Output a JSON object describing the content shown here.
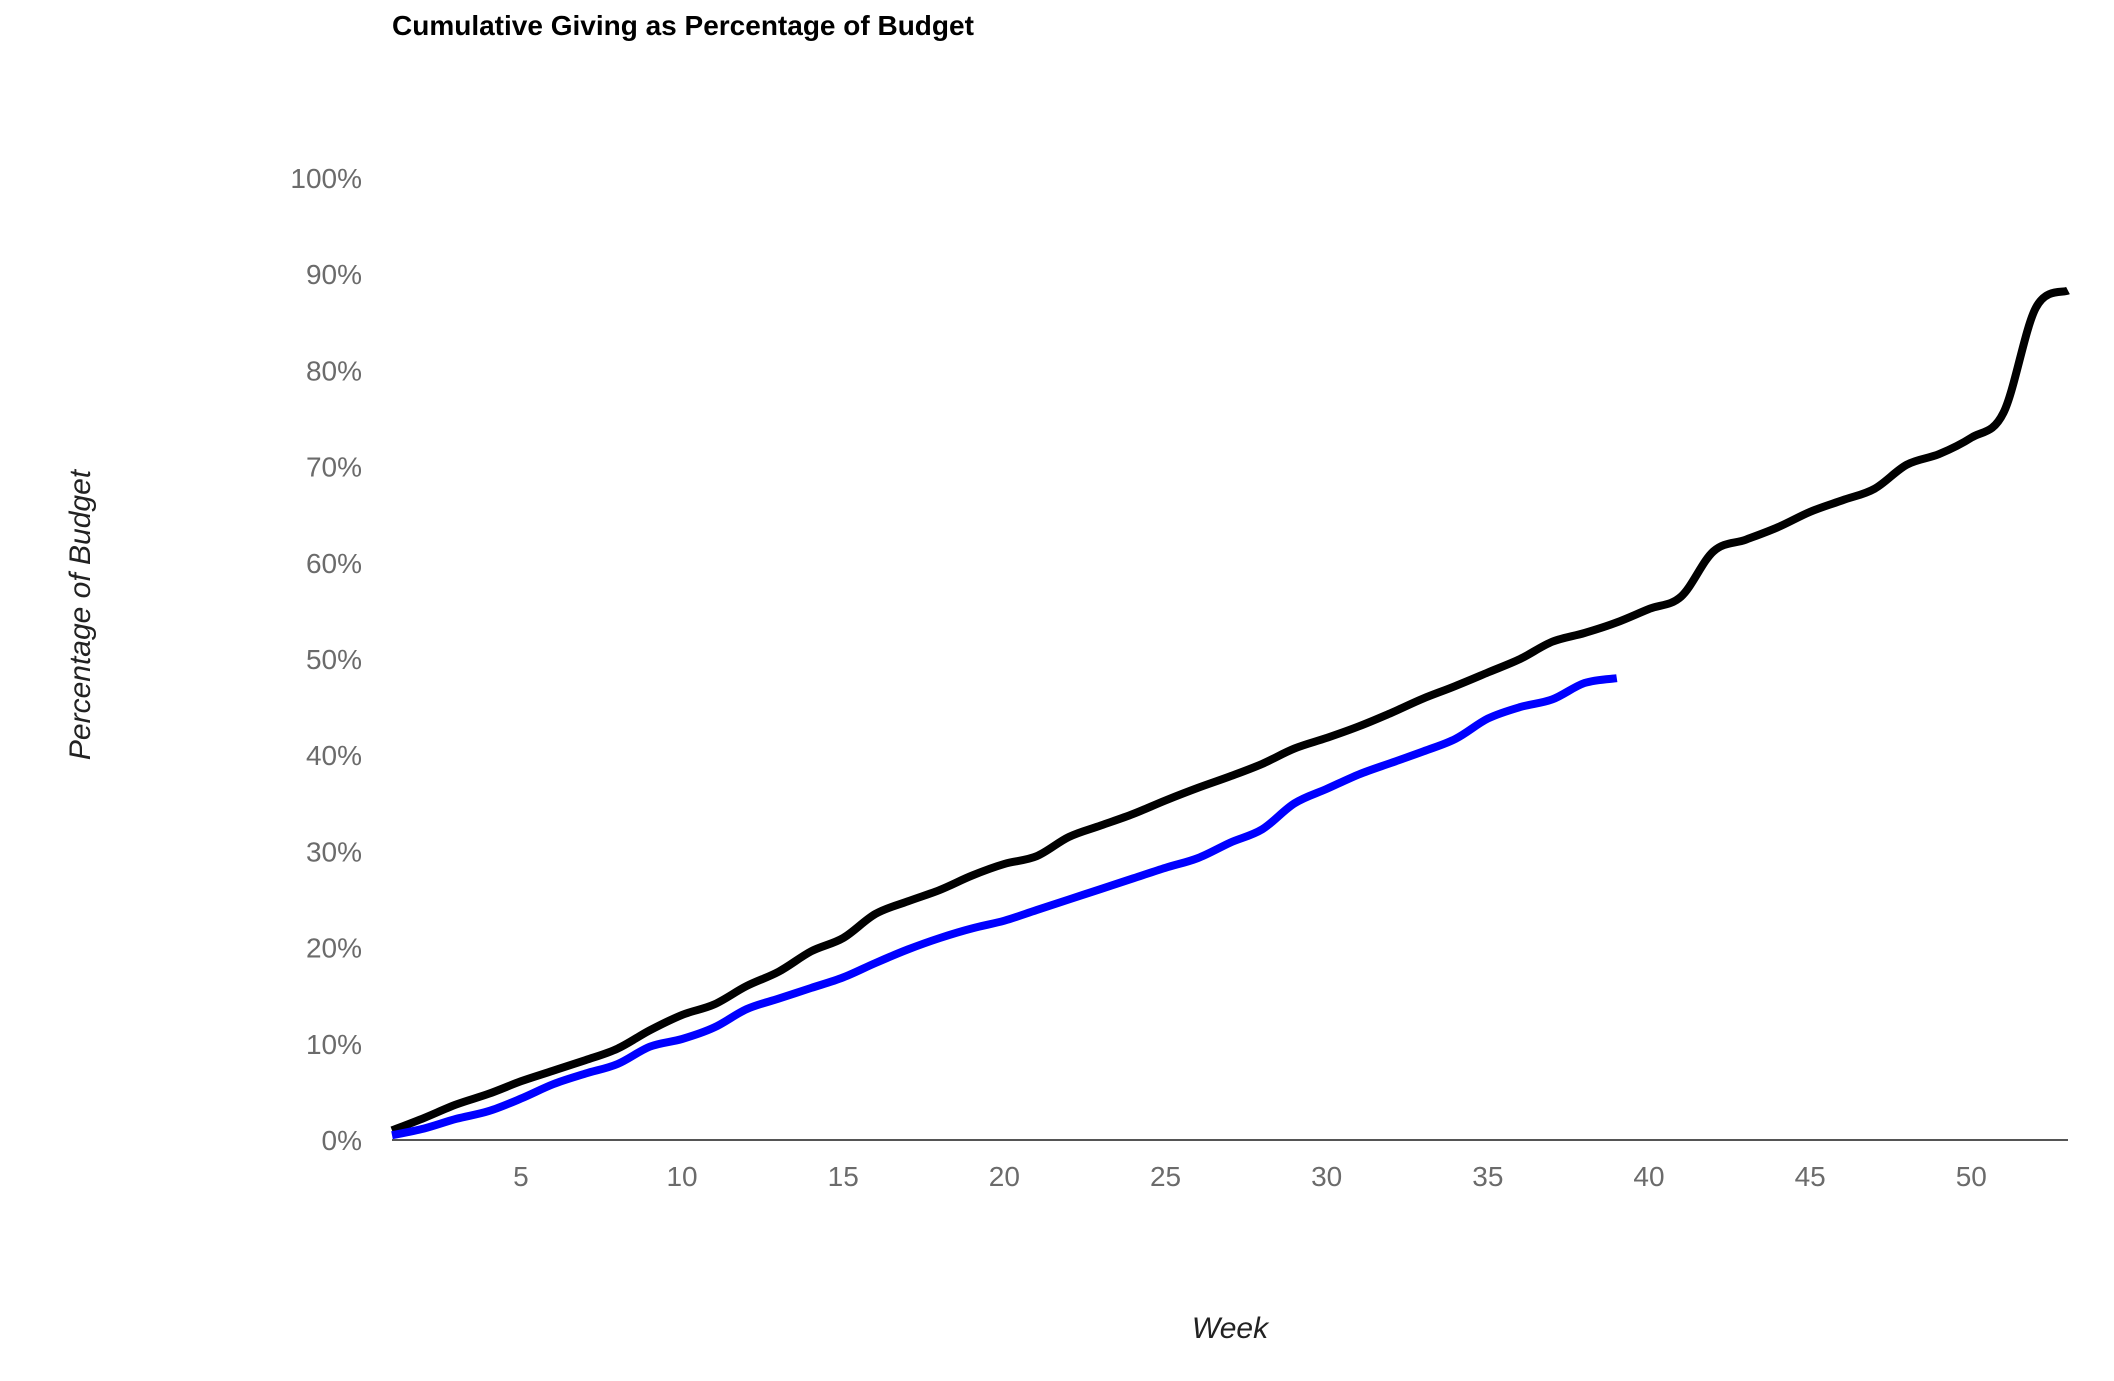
{
  "chart_data": {
    "type": "line",
    "title": "Cumulative Giving as Percentage of Budget",
    "xlabel": "Week",
    "ylabel": "Percentage of Budget",
    "xlim": [
      1,
      53
    ],
    "ylim": [
      0,
      100
    ],
    "x_ticks": [
      5,
      10,
      15,
      20,
      25,
      30,
      35,
      40,
      45,
      50
    ],
    "y_ticks": [
      "0%",
      "10%",
      "20%",
      "30%",
      "40%",
      "50%",
      "60%",
      "70%",
      "80%",
      "90%",
      "100%"
    ],
    "grid": false,
    "legend": "none",
    "series": [
      {
        "color": "#000000",
        "x": [
          1,
          2,
          3,
          4,
          5,
          6,
          7,
          8,
          9,
          10,
          11,
          12,
          13,
          14,
          15,
          16,
          17,
          18,
          19,
          20,
          21,
          22,
          23,
          24,
          25,
          26,
          27,
          28,
          29,
          30,
          31,
          32,
          33,
          34,
          35,
          36,
          37,
          38,
          39,
          40,
          41,
          42,
          43,
          44,
          45,
          46,
          47,
          48,
          49,
          50,
          51,
          52,
          53
        ],
        "values": [
          1.0,
          2.3,
          3.7,
          4.8,
          6.1,
          7.2,
          8.3,
          9.5,
          11.4,
          13.0,
          14.1,
          16.0,
          17.5,
          19.6,
          21.0,
          23.5,
          24.8,
          26.0,
          27.5,
          28.7,
          29.5,
          31.5,
          32.7,
          33.9,
          35.3,
          36.6,
          37.8,
          39.1,
          40.7,
          41.8,
          43.0,
          44.4,
          45.9,
          47.2,
          48.6,
          50.0,
          51.8,
          52.7,
          53.8,
          55.2,
          56.5,
          61.2,
          62.4,
          63.7,
          65.3,
          66.5,
          67.7,
          70.2,
          71.3,
          73.0,
          75.6,
          86.5,
          88.3
        ]
      },
      {
        "color": "#0000ff",
        "x": [
          1,
          2,
          3,
          4,
          5,
          6,
          7,
          8,
          9,
          10,
          11,
          12,
          13,
          14,
          15,
          16,
          17,
          18,
          19,
          20,
          21,
          22,
          23,
          24,
          25,
          26,
          27,
          28,
          29,
          30,
          31,
          32,
          33,
          34,
          35,
          36,
          37,
          38,
          39
        ],
        "values": [
          0.5,
          1.2,
          2.2,
          3.0,
          4.3,
          5.8,
          6.9,
          7.9,
          9.7,
          10.5,
          11.7,
          13.6,
          14.7,
          15.8,
          16.9,
          18.4,
          19.8,
          21.0,
          22.0,
          22.8,
          23.9,
          25.0,
          26.1,
          27.2,
          28.3,
          29.3,
          30.9,
          32.3,
          35.0,
          36.5,
          38.0,
          39.2,
          40.4,
          41.7,
          43.8,
          45.0,
          45.8,
          47.5,
          48.0
        ]
      }
    ]
  }
}
